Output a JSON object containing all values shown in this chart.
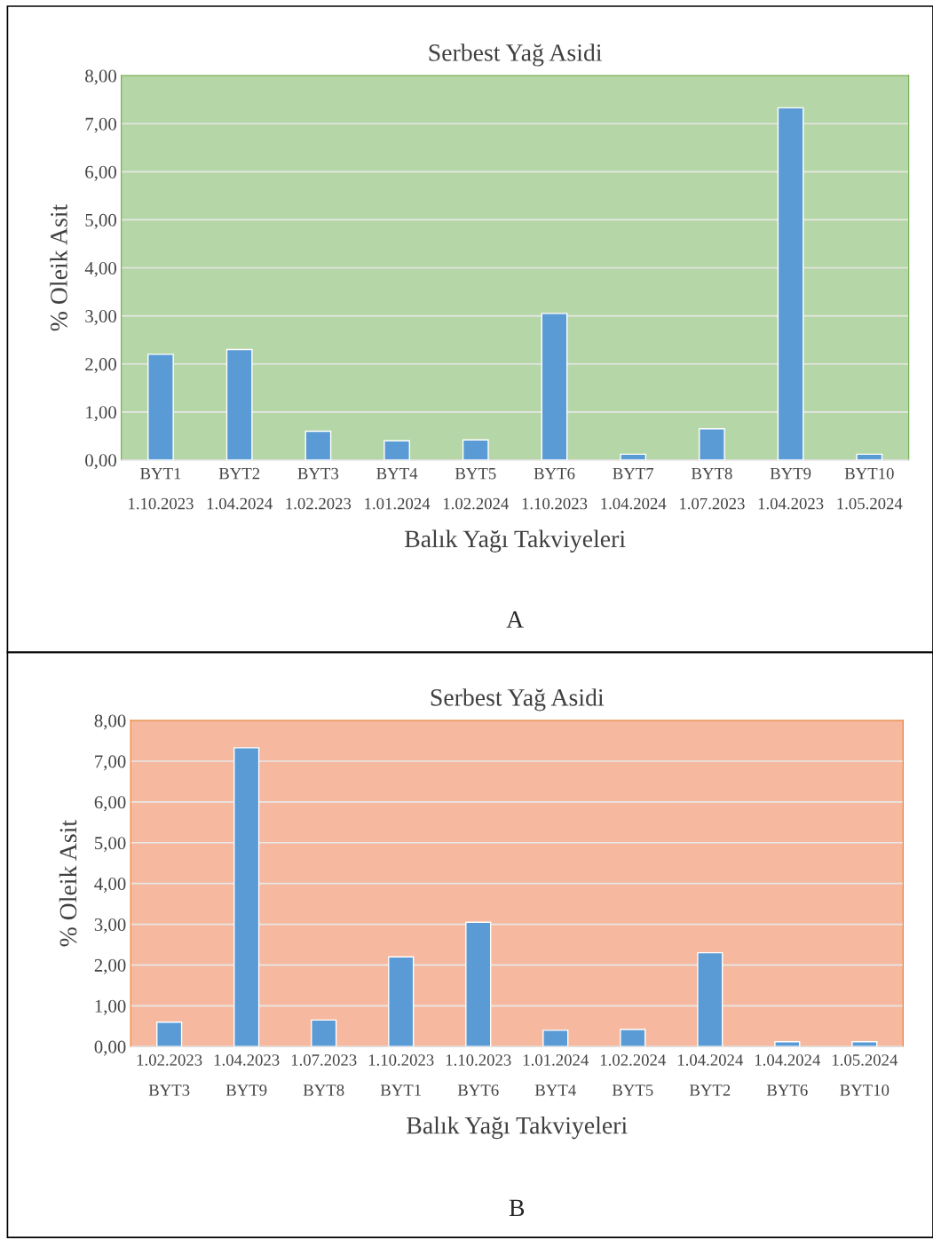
{
  "chart_data": [
    {
      "type": "bar",
      "title": "Serbest Yağ Asidi",
      "xlabel": "Balık Yağı Takviyeleri",
      "ylabel": "% Oleik Asit",
      "categories": [
        "BYT1\n1.10.2023",
        "BYT2\n1.04.2024",
        "BYT3\n1.02.2023",
        "BYT4\n1.01.2024",
        "BYT5\n1.02.2024",
        "BYT6\n1.10.2023",
        "BYT7\n1.04.2024",
        "BYT8\n1.07.2023",
        "BYT9\n1.04.2023",
        "BYT10\n1.05.2024"
      ],
      "values": [
        2.2,
        2.3,
        0.6,
        0.4,
        0.42,
        3.05,
        0.12,
        0.65,
        7.33,
        0.12
      ],
      "color": "#5b9bd5",
      "ylim": [
        0,
        8
      ],
      "yticks": [
        {
          "value": 0,
          "label": "0,00"
        },
        {
          "value": 1,
          "label": "1,00"
        },
        {
          "value": 2,
          "label": "2,00"
        },
        {
          "value": 3,
          "label": "3,00"
        },
        {
          "value": 4,
          "label": "4,00"
        },
        {
          "value": 5,
          "label": "5,00"
        },
        {
          "value": 6,
          "label": "6,00"
        },
        {
          "value": 7,
          "label": "7,00"
        },
        {
          "value": 8,
          "label": "8,00"
        }
      ],
      "grid": "y",
      "legend": false,
      "annotations": [
        "A"
      ]
    },
    {
      "type": "bar",
      "title": "Serbest Yağ Asidi",
      "xlabel": "Balık Yağı Takviyeleri",
      "ylabel": "% Oleik Asit",
      "categories": [
        "1.02.2023\nBYT3",
        "1.04.2023\nBYT9",
        "1.07.2023\nBYT8",
        "1.10.2023\nBYT1",
        "1.10.2023\nBYT6",
        "1.01.2024\nBYT4",
        "1.02.2024\nBYT5",
        "1.04.2024\nBYT2",
        "1.04.2024\nBYT6",
        "1.05.2024\nBYT10"
      ],
      "values": [
        0.6,
        7.33,
        0.65,
        2.2,
        3.05,
        0.4,
        0.42,
        2.3,
        0.12,
        0.12
      ],
      "color": "#5b9bd5",
      "ylim": [
        0,
        8
      ],
      "yticks": [
        {
          "value": 0,
          "label": "0,00"
        },
        {
          "value": 1,
          "label": "1,00"
        },
        {
          "value": 2,
          "label": "2,00"
        },
        {
          "value": 3,
          "label": "3,00"
        },
        {
          "value": 4,
          "label": "4,00"
        },
        {
          "value": 5,
          "label": "5,00"
        },
        {
          "value": 6,
          "label": "6,00"
        },
        {
          "value": 7,
          "label": "7,00"
        },
        {
          "value": 8,
          "label": "8,00"
        }
      ],
      "grid": "y",
      "legend": false,
      "annotations": [
        "B"
      ]
    }
  ]
}
